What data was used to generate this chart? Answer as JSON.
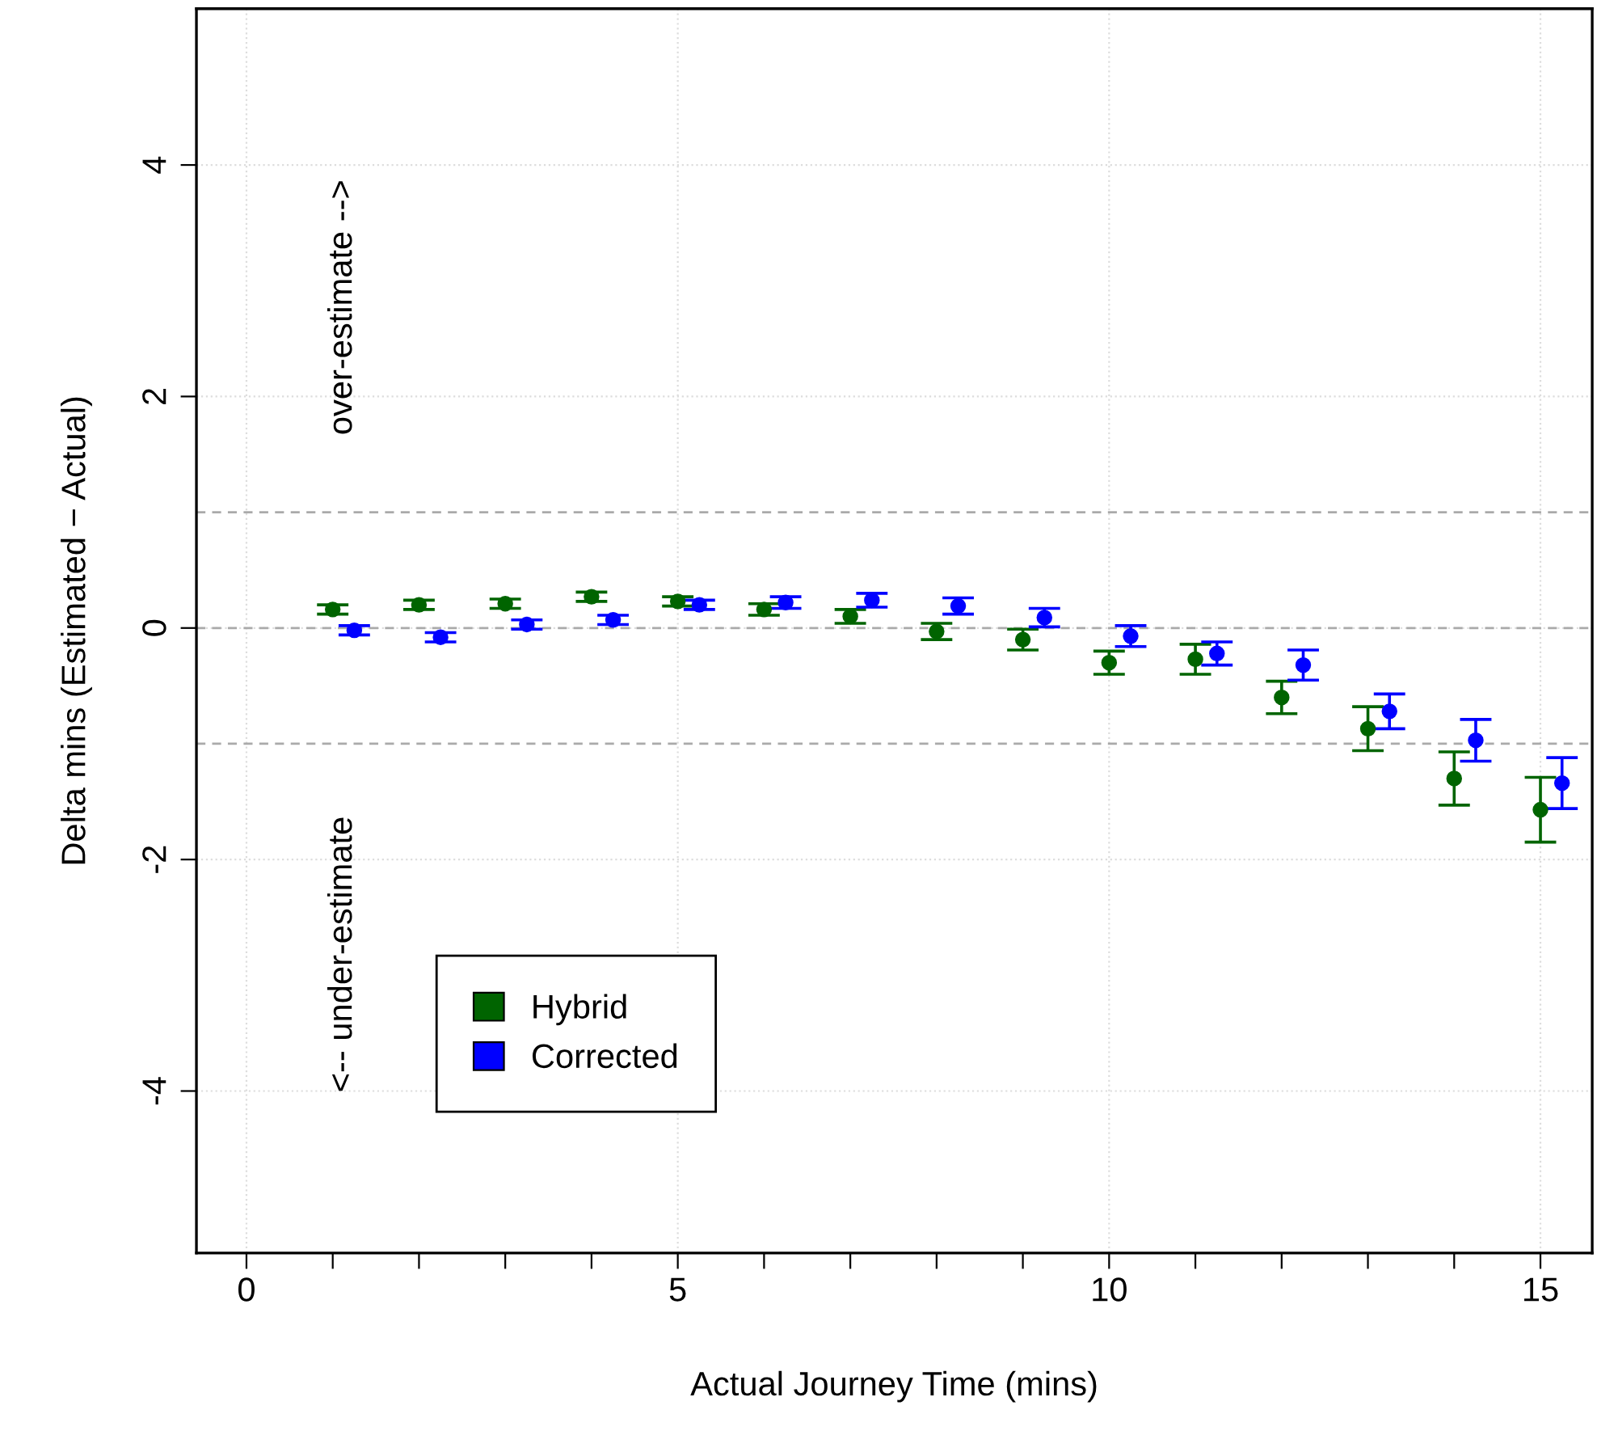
{
  "chart_data": {
    "type": "scatter",
    "xlabel": "Actual Journey Time (mins)",
    "ylabel": "Delta mins (Estimated − Actual)",
    "annotations": [
      "over-estimate -->",
      "<-- under-estimate"
    ],
    "xlim": [
      -0.58,
      15.6
    ],
    "ylim": [
      -5.4,
      5.35
    ],
    "xticks": [
      0,
      {
        "value": 1,
        "label": null
      },
      {
        "value": 2,
        "label": null
      },
      {
        "value": 3,
        "label": null
      },
      {
        "value": 4,
        "label": null
      },
      5,
      {
        "value": 6,
        "label": null
      },
      {
        "value": 7,
        "label": null
      },
      {
        "value": 8,
        "label": null
      },
      {
        "value": 9,
        "label": null
      },
      10,
      {
        "value": 11,
        "label": null
      },
      {
        "value": 12,
        "label": null
      },
      {
        "value": 13,
        "label": null
      },
      {
        "value": 14,
        "label": null
      },
      15
    ],
    "yticks": [
      -4,
      -2,
      0,
      2,
      4
    ],
    "grid": true,
    "legend": "bottom left",
    "marker": "circle",
    "ref_lines": [
      {
        "axis": "y",
        "value": 1,
        "label": null,
        "color": "#aaaaaa",
        "line_style": "dashed"
      },
      {
        "axis": "y",
        "value": 0,
        "label": null,
        "color": "#aaaaaa",
        "line_style": "dashed"
      },
      {
        "axis": "y",
        "value": -1,
        "label": null,
        "color": "#aaaaaa",
        "line_style": "dashed"
      }
    ],
    "series": [
      {
        "name": "Hybrid",
        "color": "#006400",
        "x": [
          1,
          2,
          3,
          4,
          5,
          6,
          7,
          8,
          9,
          10,
          11,
          12,
          13,
          14,
          15
        ],
        "values": [
          0.16,
          0.2,
          0.21,
          0.27,
          0.23,
          0.16,
          0.1,
          -0.03,
          -0.1,
          -0.3,
          -0.27,
          -0.6,
          -0.87,
          -1.3,
          -1.57
        ],
        "errors": [
          0.04,
          0.04,
          0.04,
          0.04,
          0.04,
          0.05,
          0.06,
          0.07,
          0.09,
          0.1,
          0.13,
          0.14,
          0.19,
          0.23,
          0.28
        ]
      },
      {
        "name": "Corrected",
        "color": "#0000ff",
        "x": [
          1.25,
          2.25,
          3.25,
          4.25,
          5.25,
          6.25,
          7.25,
          8.25,
          9.25,
          10.25,
          11.25,
          12.25,
          13.25,
          14.25,
          15.25
        ],
        "values": [
          -0.02,
          -0.08,
          0.03,
          0.07,
          0.2,
          0.22,
          0.24,
          0.19,
          0.09,
          -0.07,
          -0.22,
          -0.32,
          -0.72,
          -0.97,
          -1.34
        ],
        "errors": [
          0.04,
          0.04,
          0.04,
          0.04,
          0.04,
          0.05,
          0.06,
          0.07,
          0.08,
          0.09,
          0.1,
          0.13,
          0.15,
          0.18,
          0.22
        ]
      }
    ]
  }
}
